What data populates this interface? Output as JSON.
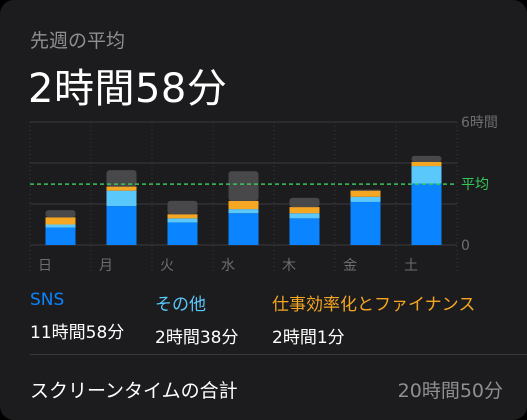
{
  "header": {
    "subtitle": "先週の平均",
    "total": "2時間58分"
  },
  "chart_data": {
    "type": "bar",
    "stacked": true,
    "categories": [
      "日",
      "月",
      "火",
      "水",
      "木",
      "金",
      "土"
    ],
    "y_unit": "hours",
    "ylim": [
      0,
      6
    ],
    "y_ticks": [
      {
        "value": 6,
        "label": "6時間"
      },
      {
        "value": 0,
        "label": "0"
      }
    ],
    "average": {
      "value": 2.97,
      "label": "平均"
    },
    "grid": true,
    "series": [
      {
        "name": "SNS",
        "color": "#0a84ff",
        "values": [
          0.85,
          1.9,
          1.1,
          1.55,
          1.3,
          2.1,
          3.0
        ]
      },
      {
        "name": "その他",
        "color": "#5ac8fa",
        "values": [
          0.15,
          0.75,
          0.2,
          0.2,
          0.25,
          0.25,
          0.85
        ]
      },
      {
        "name": "仕事効率化とファイナンス",
        "color": "#f5a623",
        "values": [
          0.35,
          0.2,
          0.2,
          0.4,
          0.3,
          0.3,
          0.2
        ]
      },
      {
        "name": "",
        "color": "#48484a",
        "values": [
          0.35,
          0.8,
          0.65,
          1.45,
          0.45,
          0.05,
          0.3
        ]
      }
    ]
  },
  "legend": [
    {
      "name": "SNS",
      "value": "11時間58分",
      "color": "#0a84ff"
    },
    {
      "name": "その他",
      "value": "2時間38分",
      "color": "#5ac8fa"
    },
    {
      "name": "仕事効率化とファイナンス",
      "value": "2時間1分",
      "color": "#f5a623"
    }
  ],
  "footer": {
    "label": "スクリーンタイムの合計",
    "value": "20時間50分"
  }
}
